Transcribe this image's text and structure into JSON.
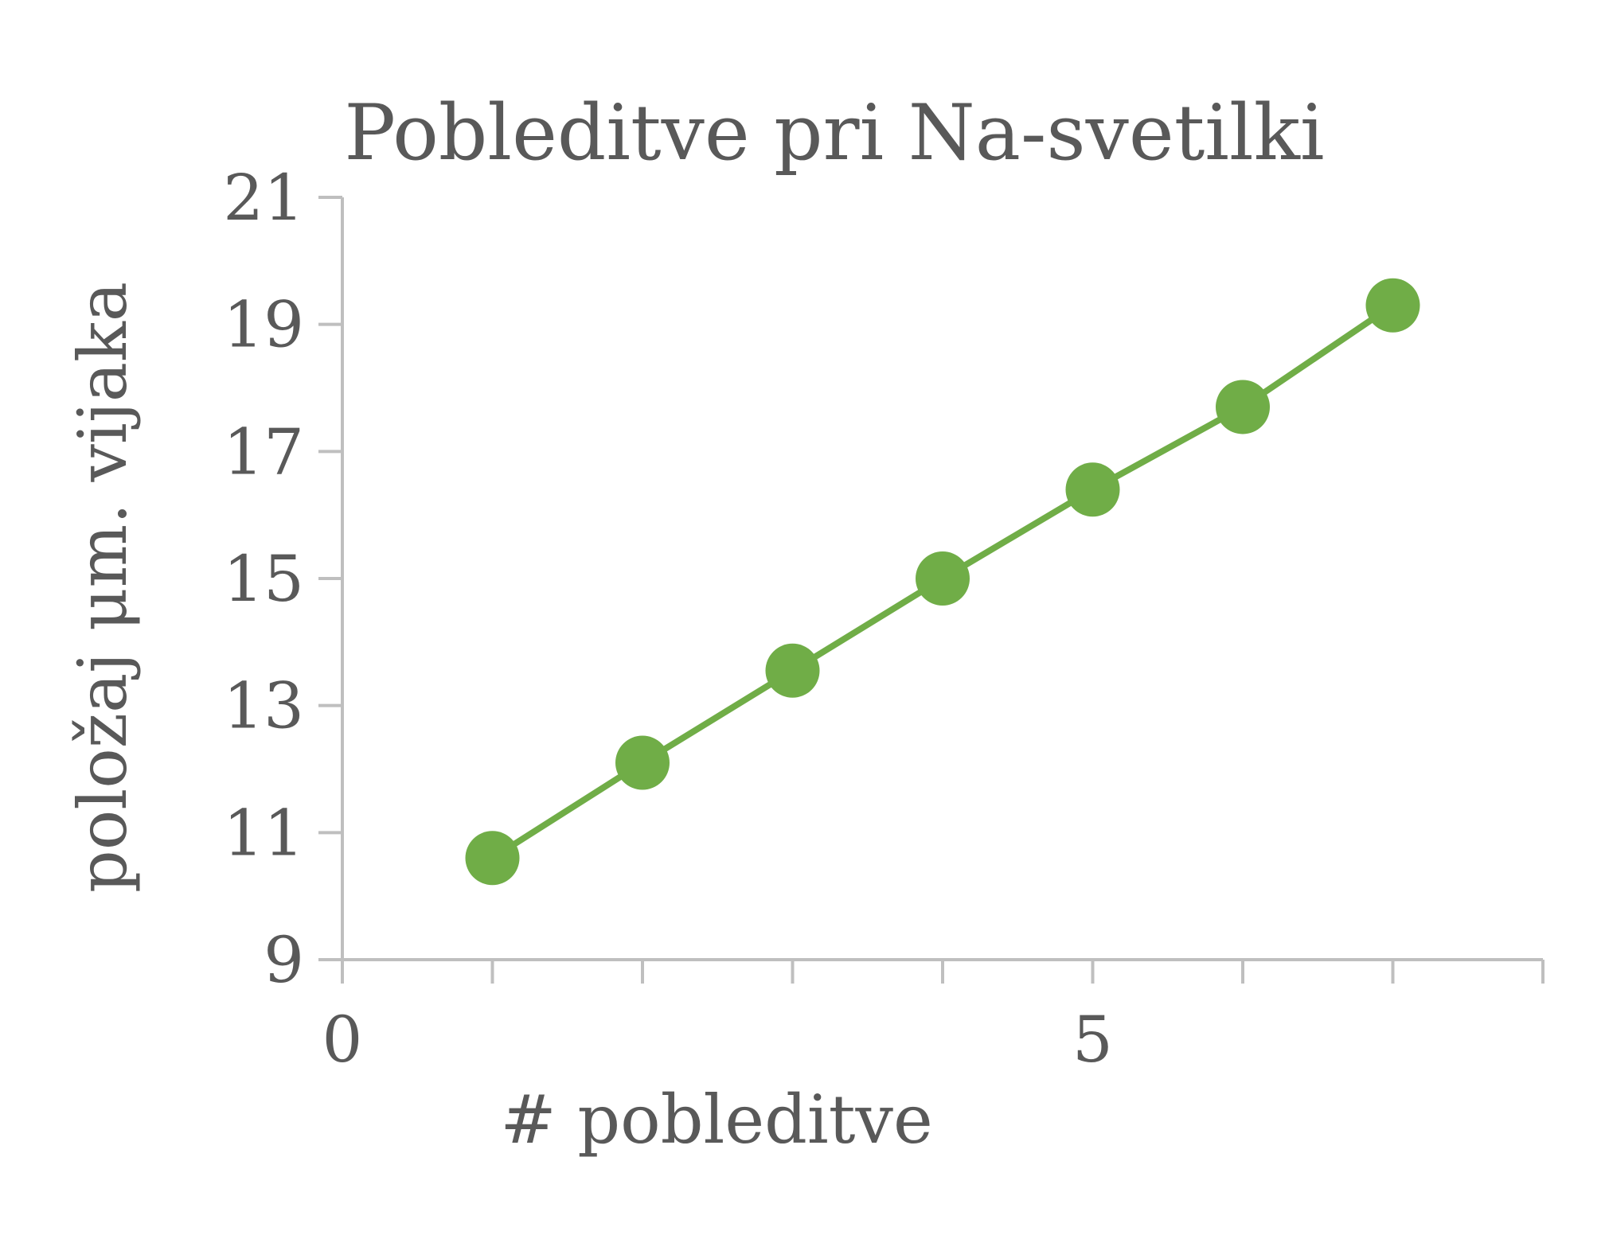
{
  "chart_data": {
    "type": "line",
    "title": "Pobleditve pri Na-svetilki",
    "xlabel": "# pobleditve",
    "ylabel": "položaj μm. vijaka",
    "xlim": [
      0,
      8
    ],
    "ylim": [
      9,
      21
    ],
    "x_tick_values": [
      0,
      1,
      2,
      3,
      4,
      5,
      6,
      7,
      8
    ],
    "x_tick_labels": [
      "0",
      "5"
    ],
    "x_tick_label_values": [
      0,
      5
    ],
    "y_ticks": [
      9,
      11,
      13,
      15,
      17,
      19,
      21
    ],
    "y_tick_labels": [
      "9",
      "11",
      "13",
      "15",
      "17",
      "19",
      "21"
    ],
    "grid": false,
    "legend": "none",
    "series": [
      {
        "color": "#70ad47",
        "marker": "circle",
        "x": [
          1,
          2,
          3,
          4,
          5,
          6,
          7
        ],
        "y": [
          10.6,
          12.1,
          13.55,
          15.0,
          16.4,
          17.7,
          19.3
        ]
      }
    ]
  },
  "colors": {
    "axis": "#bfbfbf",
    "text": "#595959",
    "series": "#70ad47"
  }
}
